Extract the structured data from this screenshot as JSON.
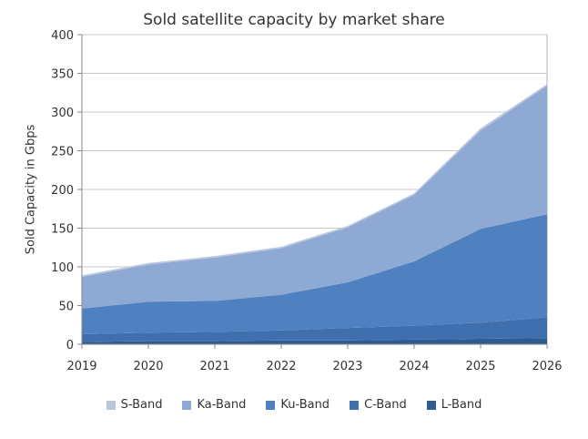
{
  "chart_data": {
    "type": "area",
    "stacked": true,
    "title": "Sold satellite capacity by market share",
    "xlabel": "",
    "ylabel": "Sold Capacity  in Gbps",
    "x": [
      "2019",
      "2020",
      "2021",
      "2022",
      "2023",
      "2024",
      "2025",
      "2026"
    ],
    "ylim": [
      0,
      400
    ],
    "yticks": [
      0,
      50,
      100,
      150,
      200,
      250,
      300,
      350,
      400
    ],
    "grid": true,
    "legend_position": "bottom",
    "series": [
      {
        "name": "L-Band",
        "color": "#2f5b93",
        "values": [
          3,
          4,
          4,
          5,
          5,
          6,
          7,
          8
        ]
      },
      {
        "name": "C-Band",
        "color": "#3f6fad",
        "values": [
          10,
          11,
          12,
          13,
          16,
          18,
          21,
          27
        ]
      },
      {
        "name": "Ku-Band",
        "color": "#4f80bf",
        "values": [
          33,
          40,
          40,
          46,
          59,
          83,
          121,
          133
        ]
      },
      {
        "name": "Ka-Band",
        "color": "#8ea9d4",
        "values": [
          41,
          48,
          56,
          60,
          71,
          86,
          127,
          166
        ]
      },
      {
        "name": "S-Band",
        "color": "#b9c6dc",
        "values": [
          2,
          2,
          2,
          2,
          2,
          2,
          3,
          2
        ]
      }
    ]
  },
  "legend_order": [
    "S-Band",
    "Ka-Band",
    "Ku-Band",
    "C-Band",
    "L-Band"
  ]
}
